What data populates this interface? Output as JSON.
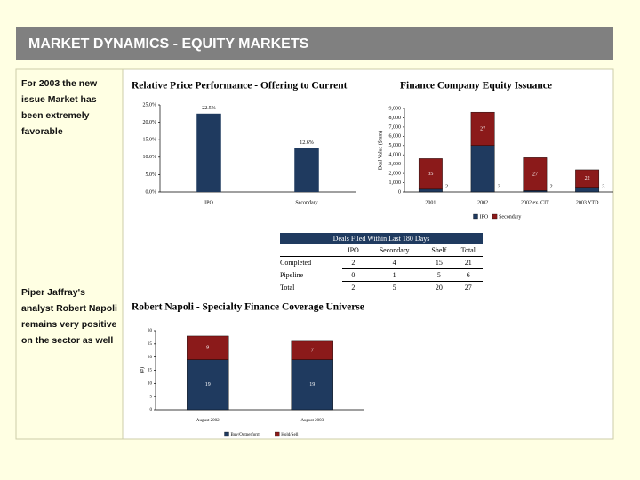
{
  "header": {
    "title": "MARKET DYNAMICS - EQUITY MARKETS"
  },
  "sidebar": {
    "notes": [
      "For 2003 the new issue Market has been extremely favorable",
      "Piper Jaffray's analyst Robert Napoli remains very positive on the sector as well"
    ]
  },
  "chart_data": [
    {
      "type": "bar",
      "title": "Relative Price Performance - Offering to Current",
      "categories": [
        "IPO",
        "Secondary"
      ],
      "values": [
        22.5,
        12.6
      ],
      "value_labels": [
        "22.5%",
        "12.6%"
      ],
      "color": "#1f3a5f",
      "ylim": [
        0,
        25
      ],
      "yticks": [
        {
          "value": 0,
          "label": "0.0%"
        },
        {
          "value": 5,
          "label": "5.0%"
        },
        {
          "value": 10,
          "label": "10.0%"
        },
        {
          "value": 15,
          "label": "15.0%"
        },
        {
          "value": 20,
          "label": "20.0%"
        },
        {
          "value": 25,
          "label": "25.0%"
        }
      ]
    },
    {
      "type": "stacked_bar",
      "title": "Finance Company Equity Issuance",
      "ylabel": "Deal Value ($mm)",
      "categories": [
        "2001",
        "2002",
        "2002 ex. CIT",
        "2003 YTD"
      ],
      "series": [
        {
          "name": "IPO",
          "color": "#1f3a5f",
          "values": [
            300,
            5000,
            150,
            500
          ],
          "deal_counts": [
            2,
            3,
            2,
            3
          ]
        },
        {
          "name": "Secondary",
          "color": "#8b1a1a",
          "values": [
            3300,
            3600,
            3550,
            1900
          ],
          "deal_counts": [
            35,
            27,
            27,
            22
          ]
        }
      ],
      "ylim": [
        0,
        9000
      ],
      "yticks": [
        0,
        {
          "value": 1000,
          "label": "1,000"
        },
        {
          "value": 2000,
          "label": "2,000"
        },
        {
          "value": 3000,
          "label": "3,000"
        },
        {
          "value": 4000,
          "label": "4,000"
        },
        {
          "value": 5000,
          "label": "5,000"
        },
        {
          "value": 6000,
          "label": "6,000"
        },
        {
          "value": 7000,
          "label": "7,000"
        },
        {
          "value": 8000,
          "label": "8,000"
        },
        {
          "value": 9000,
          "label": "9,000"
        }
      ],
      "legend": "bottom"
    },
    {
      "type": "stacked_bar",
      "title": "Robert Napoli - Specialty Finance Coverage Universe",
      "ylabel": "(#)",
      "categories": [
        "August 2002",
        "August 2003"
      ],
      "series": [
        {
          "name": "Buy/Outperform",
          "color": "#1f3a5f",
          "values": [
            19,
            19
          ]
        },
        {
          "name": "Hold/Sell",
          "color": "#8b1a1a",
          "values": [
            9,
            7
          ]
        }
      ],
      "ylim": [
        0,
        30
      ],
      "yticks": [
        0,
        5,
        10,
        15,
        20,
        25,
        30
      ],
      "data_labels": true,
      "legend": "bottom"
    }
  ],
  "table": {
    "title": "Deals Filed Within Last 180 Days",
    "header": [
      "IPO",
      "Secondary",
      "Shelf",
      "Total"
    ],
    "rows": [
      [
        "Completed",
        "2",
        "4",
        "15",
        "21"
      ],
      [
        "Pipeline",
        "0",
        "1",
        "5",
        "6"
      ],
      [
        "Total",
        "2",
        "5",
        "20",
        "27"
      ]
    ]
  }
}
